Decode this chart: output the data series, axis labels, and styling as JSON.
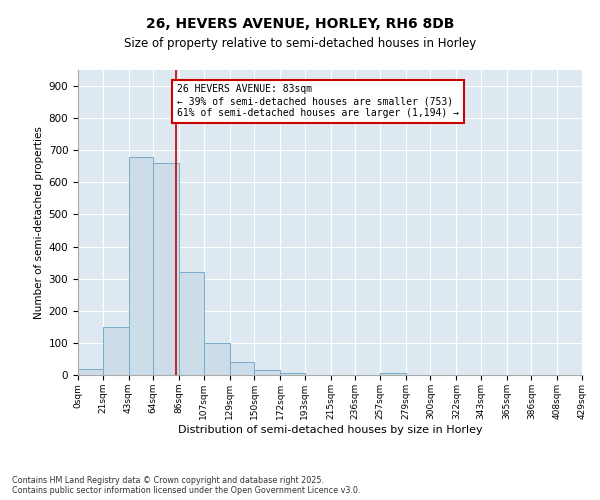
{
  "title": "26, HEVERS AVENUE, HORLEY, RH6 8DB",
  "subtitle": "Size of property relative to semi-detached houses in Horley",
  "xlabel": "Distribution of semi-detached houses by size in Horley",
  "ylabel": "Number of semi-detached properties",
  "bin_edges": [
    0,
    21,
    43,
    64,
    86,
    107,
    129,
    150,
    172,
    193,
    215,
    236,
    257,
    279,
    300,
    322,
    343,
    365,
    386,
    408,
    429
  ],
  "bar_heights": [
    20,
    150,
    680,
    660,
    320,
    100,
    40,
    15,
    5,
    0,
    0,
    0,
    5,
    0,
    0,
    0,
    0,
    0,
    0,
    0
  ],
  "bar_color": "#ccdce8",
  "bar_edge_color": "#7aabcc",
  "property_size": 83,
  "property_label": "26 HEVERS AVENUE: 83sqm",
  "pct_smaller": 39,
  "n_smaller": 753,
  "pct_larger": 61,
  "n_larger": 1194,
  "vline_color": "#cc0000",
  "annotation_box_color": "#cc0000",
  "ylim": [
    0,
    950
  ],
  "yticks": [
    0,
    100,
    200,
    300,
    400,
    500,
    600,
    700,
    800,
    900
  ],
  "background_color": "#dde8f0",
  "footer_line1": "Contains HM Land Registry data © Crown copyright and database right 2025.",
  "footer_line2": "Contains public sector information licensed under the Open Government Licence v3.0."
}
